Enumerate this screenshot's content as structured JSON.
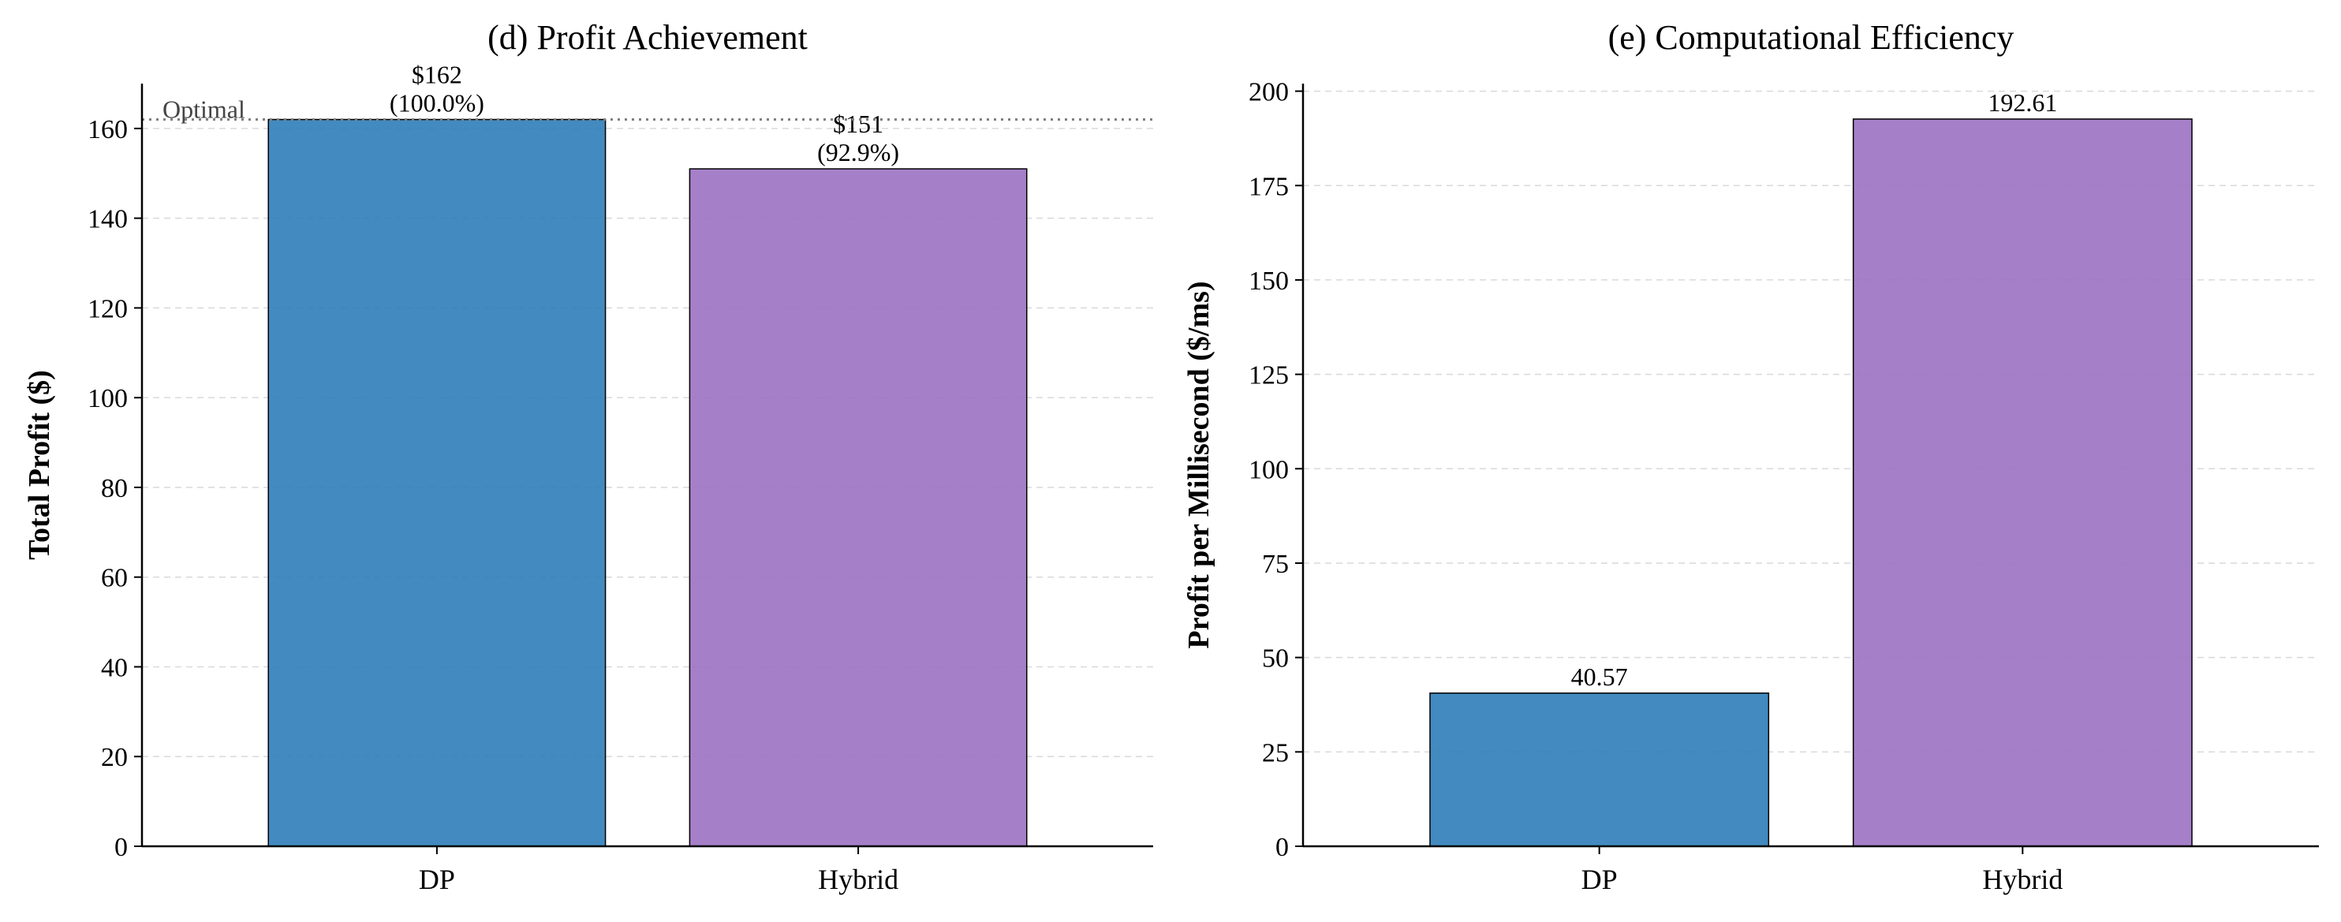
{
  "colors": {
    "dp": "#2e7db8",
    "hybrid": "#9b72c2",
    "grid": "#d9d9d9",
    "optimal_line": "#808080"
  },
  "chart_data": [
    {
      "type": "bar",
      "title": "(d) Profit Achievement",
      "xlabel": "",
      "ylabel": "Total Profit ($)",
      "categories": [
        "DP",
        "Hybrid"
      ],
      "values": [
        162,
        151
      ],
      "bar_labels": [
        [
          "$162",
          "(100.0%)"
        ],
        [
          "$151",
          "(92.9%)"
        ]
      ],
      "colors": [
        "#2e7db8",
        "#9b72c2"
      ],
      "ylim": [
        0,
        170
      ],
      "yticks": [
        0,
        20,
        40,
        60,
        80,
        100,
        120,
        140,
        160
      ],
      "grid": "y-dashed",
      "reference_line": {
        "value": 162,
        "label": "Optimal",
        "style": "dotted"
      }
    },
    {
      "type": "bar",
      "title": "(e) Computational Efficiency",
      "xlabel": "",
      "ylabel": "Profit per Millisecond ($/ms)",
      "categories": [
        "DP",
        "Hybrid"
      ],
      "values": [
        40.57,
        192.61
      ],
      "bar_labels": [
        [
          "40.57"
        ],
        [
          "192.61"
        ]
      ],
      "colors": [
        "#2e7db8",
        "#9b72c2"
      ],
      "ylim": [
        0,
        202
      ],
      "yticks": [
        0,
        25,
        50,
        75,
        100,
        125,
        150,
        175,
        200
      ],
      "grid": "y-dashed"
    }
  ]
}
